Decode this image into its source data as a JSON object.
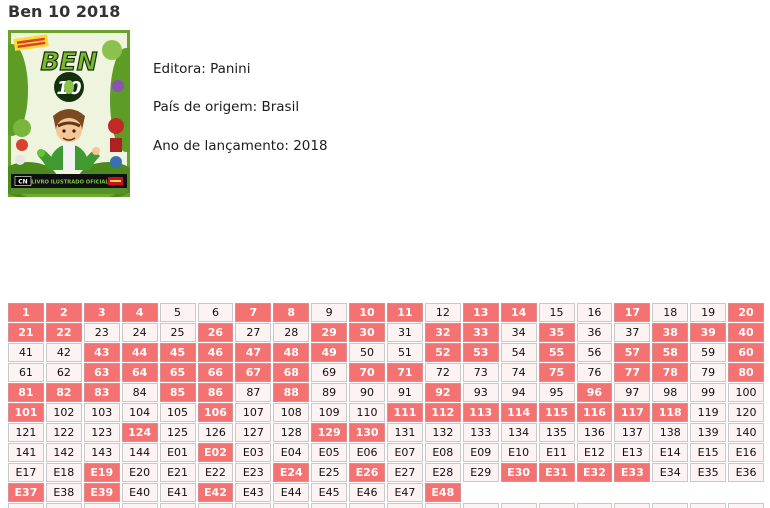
{
  "header": {
    "title": "Ben 10 2018"
  },
  "cover": {
    "logo_top": "BEN",
    "logo_number": "10",
    "cn_logo": "CN",
    "bottom_text": "LIVRO ILUSTRADO OFICIAL"
  },
  "info": {
    "lines": [
      {
        "label": "Editora",
        "value": "Panini",
        "text": "Editora: Panini"
      },
      {
        "label": "País de origem",
        "value": "Brasil",
        "text": "País de origem: Brasil"
      },
      {
        "label": "Ano de lançamento",
        "value": "2018",
        "text": "Ano de lançamento: 2018"
      }
    ]
  },
  "grid": {
    "columns": 20,
    "colors": {
      "owned_bg": "#f57272",
      "cell_bg": "#fdf3f3",
      "border": "#c9c9c9",
      "cell_text": "#111111",
      "owned_text": "#ffffff"
    },
    "cells": [
      "1",
      "2",
      "3",
      "4",
      "5",
      "6",
      "7",
      "8",
      "9",
      "10",
      "11",
      "12",
      "13",
      "14",
      "15",
      "16",
      "17",
      "18",
      "19",
      "20",
      "21",
      "22",
      "23",
      "24",
      "25",
      "26",
      "27",
      "28",
      "29",
      "30",
      "31",
      "32",
      "33",
      "34",
      "35",
      "36",
      "37",
      "38",
      "39",
      "40",
      "41",
      "42",
      "43",
      "44",
      "45",
      "46",
      "47",
      "48",
      "49",
      "50",
      "51",
      "52",
      "53",
      "54",
      "55",
      "56",
      "57",
      "58",
      "59",
      "60",
      "61",
      "62",
      "63",
      "64",
      "65",
      "66",
      "67",
      "68",
      "69",
      "70",
      "71",
      "72",
      "73",
      "74",
      "75",
      "76",
      "77",
      "78",
      "79",
      "80",
      "81",
      "82",
      "83",
      "84",
      "85",
      "86",
      "87",
      "88",
      "89",
      "90",
      "91",
      "92",
      "93",
      "94",
      "95",
      "96",
      "97",
      "98",
      "99",
      "100",
      "101",
      "102",
      "103",
      "104",
      "105",
      "106",
      "107",
      "108",
      "109",
      "110",
      "111",
      "112",
      "113",
      "114",
      "115",
      "116",
      "117",
      "118",
      "119",
      "120",
      "121",
      "122",
      "123",
      "124",
      "125",
      "126",
      "127",
      "128",
      "129",
      "130",
      "131",
      "132",
      "133",
      "134",
      "135",
      "136",
      "137",
      "138",
      "139",
      "140",
      "141",
      "142",
      "143",
      "144",
      "E01",
      "E02",
      "E03",
      "E04",
      "E05",
      "E06",
      "E07",
      "E08",
      "E09",
      "E10",
      "E11",
      "E12",
      "E13",
      "E14",
      "E15",
      "E16",
      "E17",
      "E18",
      "E19",
      "E20",
      "E21",
      "E22",
      "E23",
      "E24",
      "E25",
      "E26",
      "E27",
      "E28",
      "E29",
      "E30",
      "E31",
      "E32",
      "E33",
      "E34",
      "E35",
      "E36",
      "E37",
      "E38",
      "E39",
      "E40",
      "E41",
      "E42",
      "E43",
      "E44",
      "E45",
      "E46",
      "E47",
      "E48"
    ],
    "owned": [
      "1",
      "2",
      "3",
      "4",
      "7",
      "8",
      "10",
      "11",
      "13",
      "14",
      "17",
      "20",
      "21",
      "22",
      "26",
      "29",
      "30",
      "32",
      "33",
      "35",
      "38",
      "39",
      "40",
      "43",
      "44",
      "45",
      "46",
      "47",
      "48",
      "49",
      "52",
      "53",
      "55",
      "57",
      "58",
      "60",
      "63",
      "64",
      "65",
      "66",
      "67",
      "68",
      "70",
      "71",
      "75",
      "77",
      "78",
      "80",
      "81",
      "82",
      "83",
      "85",
      "86",
      "88",
      "92",
      "96",
      "101",
      "106",
      "111",
      "112",
      "113",
      "114",
      "115",
      "116",
      "117",
      "118",
      "124",
      "129",
      "130",
      "E02",
      "E19",
      "E24",
      "E26",
      "E30",
      "E31",
      "E32",
      "E33",
      "E37",
      "E39",
      "E42",
      "E48"
    ]
  }
}
